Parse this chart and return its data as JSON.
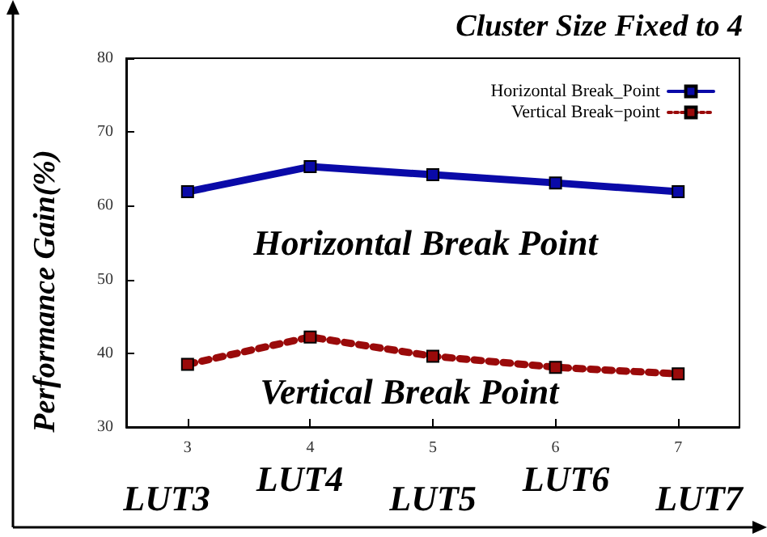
{
  "chart_data": {
    "type": "line",
    "title": "Cluster Size Fixed to 4",
    "ylabel": "Performance Gain(%)",
    "x": [
      3,
      4,
      5,
      6,
      7
    ],
    "xlim": [
      2.5,
      7.5
    ],
    "xticks": [
      3,
      4,
      5,
      6,
      7
    ],
    "ylim": [
      30,
      80
    ],
    "yticks": [
      30,
      40,
      50,
      60,
      70,
      80
    ],
    "series": [
      {
        "name": "Horizontal Break_Point",
        "color": "#0a0aa8",
        "values": [
          61.9,
          65.3,
          64.2,
          63.1,
          61.9
        ],
        "line_style": "solid"
      },
      {
        "name": "Vertical Break−point",
        "color": "#9a0a0a",
        "values": [
          38.5,
          42.2,
          39.6,
          38.1,
          37.2
        ],
        "line_style": "dotted"
      }
    ],
    "marker": "square",
    "legend": "top right",
    "grid": false,
    "annotations": [
      "Horizontal Break Point",
      "Vertical Break Point",
      "LUT3",
      "LUT4",
      "LUT5",
      "LUT6",
      "LUT7"
    ]
  }
}
